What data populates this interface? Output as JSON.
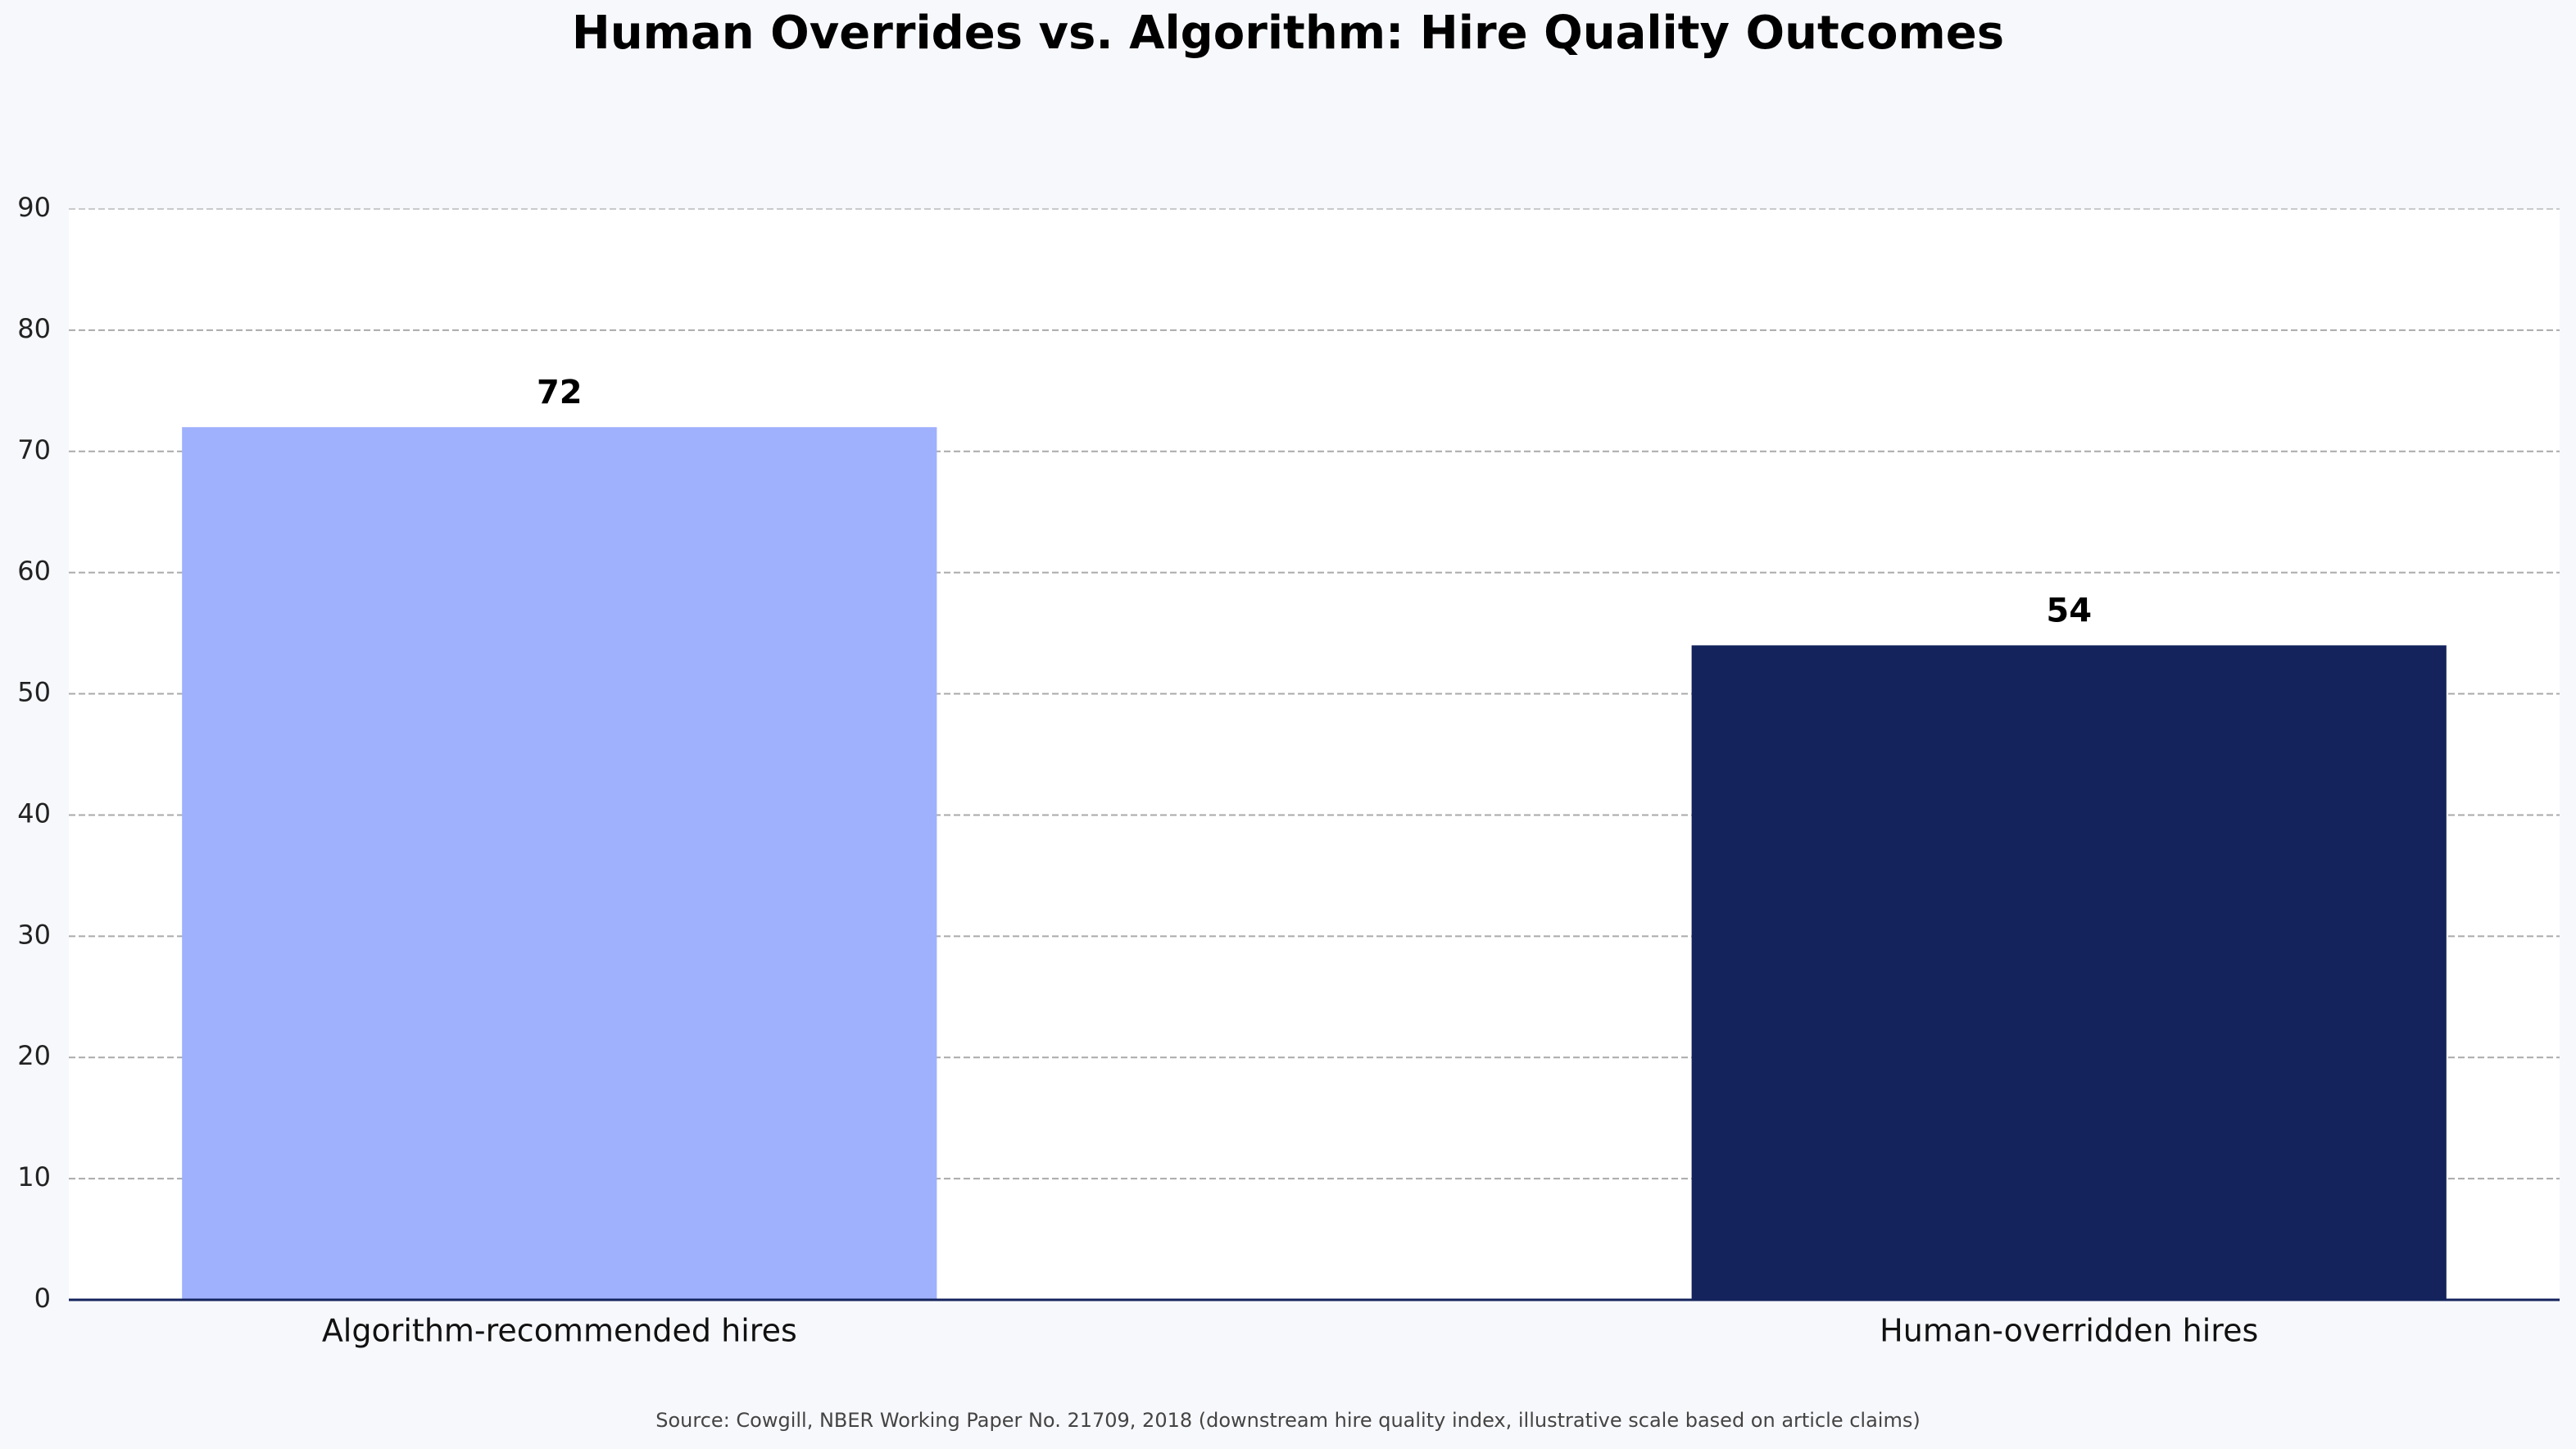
{
  "chart_data": {
    "type": "bar",
    "title": "Human Overrides vs. Algorithm: Hire Quality Outcomes",
    "categories": [
      "Algorithm-recommended hires",
      "Human-overridden hires"
    ],
    "values": [
      72,
      54
    ],
    "colors": [
      "#9fb0fd",
      "#14235c"
    ],
    "ylim": [
      0,
      90
    ],
    "yticks": [
      0,
      10,
      20,
      30,
      40,
      50,
      60,
      70,
      80,
      90
    ],
    "grid": true,
    "source": "Source: Cowgill, NBER Working Paper No. 21709, 2018 (downstream hire quality index, illustrative scale based on article claims)"
  }
}
